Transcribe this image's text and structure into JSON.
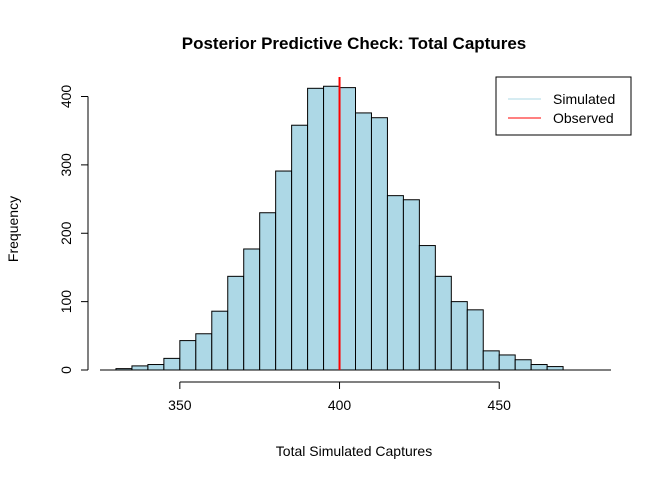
{
  "chart_data": {
    "type": "bar",
    "title": "Posterior Predictive Check: Total Captures",
    "xlabel": "Total Simulated Captures",
    "ylabel": "Frequency",
    "xlim": [
      325,
      485
    ],
    "ylim": [
      0,
      430
    ],
    "xticks": [
      350,
      400,
      450
    ],
    "yticks": [
      0,
      100,
      200,
      300,
      400
    ],
    "bin_width": 5,
    "bins": [
      {
        "x0": 330,
        "x1": 335,
        "count": 2
      },
      {
        "x0": 335,
        "x1": 340,
        "count": 6
      },
      {
        "x0": 340,
        "x1": 345,
        "count": 8
      },
      {
        "x0": 345,
        "x1": 350,
        "count": 17
      },
      {
        "x0": 350,
        "x1": 355,
        "count": 43
      },
      {
        "x0": 355,
        "x1": 360,
        "count": 53
      },
      {
        "x0": 360,
        "x1": 365,
        "count": 86
      },
      {
        "x0": 365,
        "x1": 370,
        "count": 137
      },
      {
        "x0": 370,
        "x1": 375,
        "count": 177
      },
      {
        "x0": 375,
        "x1": 380,
        "count": 230
      },
      {
        "x0": 380,
        "x1": 385,
        "count": 291
      },
      {
        "x0": 385,
        "x1": 390,
        "count": 358
      },
      {
        "x0": 390,
        "x1": 395,
        "count": 412
      },
      {
        "x0": 395,
        "x1": 400,
        "count": 415
      },
      {
        "x0": 400,
        "x1": 405,
        "count": 413
      },
      {
        "x0": 405,
        "x1": 410,
        "count": 376
      },
      {
        "x0": 410,
        "x1": 415,
        "count": 369
      },
      {
        "x0": 415,
        "x1": 420,
        "count": 255
      },
      {
        "x0": 420,
        "x1": 425,
        "count": 249
      },
      {
        "x0": 425,
        "x1": 430,
        "count": 182
      },
      {
        "x0": 430,
        "x1": 435,
        "count": 137
      },
      {
        "x0": 435,
        "x1": 440,
        "count": 100
      },
      {
        "x0": 440,
        "x1": 445,
        "count": 88
      },
      {
        "x0": 445,
        "x1": 450,
        "count": 28
      },
      {
        "x0": 450,
        "x1": 455,
        "count": 22
      },
      {
        "x0": 455,
        "x1": 460,
        "count": 15
      },
      {
        "x0": 460,
        "x1": 465,
        "count": 8
      },
      {
        "x0": 465,
        "x1": 470,
        "count": 5
      }
    ],
    "observed_value": 400,
    "legend": {
      "position": "top-right",
      "entries": [
        {
          "label": "Simulated",
          "color": "#add8e6"
        },
        {
          "label": "Observed",
          "color": "#ff0000"
        }
      ]
    },
    "colors": {
      "bar_fill": "#add8e6",
      "bar_stroke": "#000000",
      "observed_line": "#ff0000"
    },
    "grid": false
  }
}
